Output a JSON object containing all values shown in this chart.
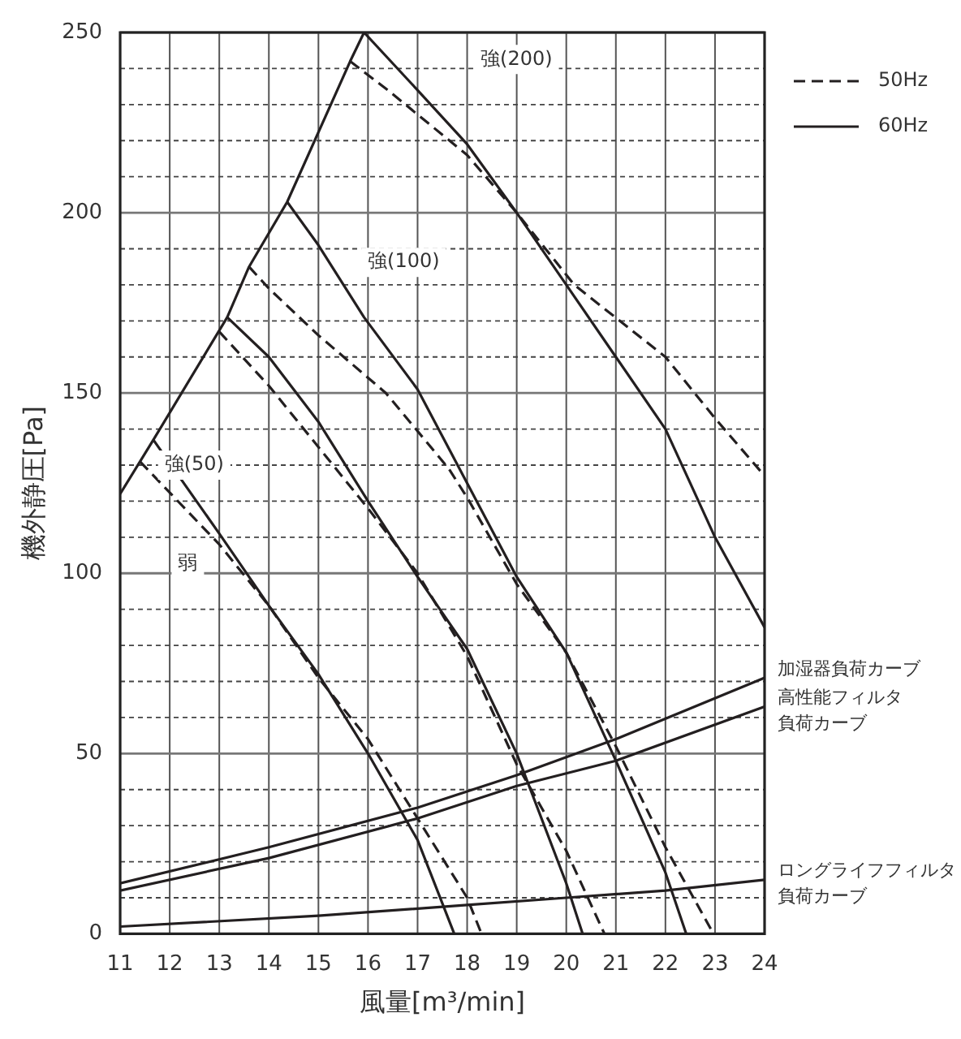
{
  "chart_data": {
    "type": "line",
    "xlabel": "風量[m³/min]",
    "ylabel": "機外静圧[Pa]",
    "xlim": [
      11,
      24
    ],
    "xticks": [
      11,
      12,
      13,
      14,
      15,
      16,
      17,
      18,
      19,
      20,
      21,
      22,
      23,
      24
    ],
    "ylim": [
      0,
      250
    ],
    "yticks": [
      0,
      {
        "value": 10,
        "label": null
      },
      {
        "value": 20,
        "label": null
      },
      {
        "value": 30,
        "label": null
      },
      {
        "value": 40,
        "label": null
      },
      50,
      {
        "value": 60,
        "label": null
      },
      {
        "value": 70,
        "label": null
      },
      {
        "value": 80,
        "label": null
      },
      {
        "value": 90,
        "label": null
      },
      100,
      {
        "value": 110,
        "label": null
      },
      {
        "value": 120,
        "label": null
      },
      {
        "value": 130,
        "label": null
      },
      {
        "value": 140,
        "label": null
      },
      150,
      {
        "value": 160,
        "label": null
      },
      {
        "value": 170,
        "label": null
      },
      {
        "value": 180,
        "label": null
      },
      {
        "value": 190,
        "label": null
      },
      200,
      {
        "value": 210,
        "label": null
      },
      {
        "value": 220,
        "label": null
      },
      {
        "value": 230,
        "label": null
      },
      {
        "value": 240,
        "label": null
      },
      250
    ],
    "grid": true,
    "legend": "top right",
    "marker": "none",
    "annotations": [
      "強(200)",
      "強(100)",
      "強(50)",
      "弱"
    ],
    "series": [
      {
        "name": "50Hz",
        "color": "#231f20",
        "line_style": "dashed",
        "x": [
          15.64,
          16.4,
          18,
          19,
          20.16,
          22,
          23,
          24
        ],
        "values": [
          242,
          234,
          216,
          200,
          180,
          160,
          143,
          127
        ]
      },
      {
        "name": "60Hz",
        "color": "#231f20",
        "line_style": "solid",
        "x": [
          15.92,
          17,
          18,
          19,
          20,
          21,
          22,
          22.5,
          23,
          24
        ],
        "values": [
          250,
          234,
          219,
          200,
          180,
          160,
          140,
          125,
          110,
          85
        ]
      },
      {
        "color": "#231f20",
        "line_style": "solid",
        "x": [
          11,
          11.67,
          13.16,
          13.6,
          14.37,
          15.64,
          15.92
        ],
        "values": [
          122,
          137,
          171,
          185,
          203,
          242,
          250
        ]
      },
      {
        "color": "#231f20",
        "line_style": "solid",
        "x": [
          14.37,
          15,
          15.92,
          17,
          18,
          19,
          20,
          21,
          22,
          22.42
        ],
        "values": [
          203,
          191,
          171,
          151,
          125,
          99,
          78,
          48,
          17,
          0
        ]
      },
      {
        "color": "#231f20",
        "line_style": "dashed",
        "x": [
          13.6,
          14,
          15,
          16.36,
          17.63,
          18,
          19,
          20,
          21,
          22,
          22.97
        ],
        "values": [
          185,
          179,
          166,
          150,
          129,
          121,
          97,
          78,
          52,
          24,
          0
        ]
      },
      {
        "color": "#231f20",
        "line_style": "solid",
        "x": [
          13.16,
          14,
          15,
          16,
          17,
          18,
          19,
          20,
          20.33
        ],
        "values": [
          171,
          160,
          142,
          120,
          99,
          79,
          50,
          14,
          0
        ]
      },
      {
        "color": "#231f20",
        "line_style": "dashed",
        "x": [
          13,
          14,
          15,
          16,
          17,
          18,
          19,
          20,
          20.77
        ],
        "values": [
          167,
          152,
          135,
          118,
          100,
          77,
          47,
          23,
          0
        ]
      },
      {
        "color": "#231f20",
        "line_style": "solid",
        "x": [
          11.67,
          13,
          14,
          15,
          16,
          17,
          17.74
        ],
        "values": [
          137,
          111,
          91,
          72,
          50,
          26,
          0
        ]
      },
      {
        "color": "#231f20",
        "line_style": "dashed",
        "x": [
          11.4,
          13,
          14,
          15,
          16,
          17,
          18,
          18.29
        ],
        "values": [
          131,
          108,
          91,
          71,
          54,
          32,
          10,
          0
        ]
      },
      {
        "name": "加湿器負荷カーブ",
        "color": "#231f20",
        "x": [
          11,
          14,
          17,
          19,
          20,
          21,
          24
        ],
        "values": [
          14,
          24,
          35,
          44,
          49,
          54,
          71
        ]
      },
      {
        "name": "高性能フィルタ負荷カーブ",
        "color": "#231f20",
        "x": [
          11,
          14,
          17,
          19,
          21,
          24
        ],
        "values": [
          12,
          21,
          32,
          41,
          48,
          63
        ]
      },
      {
        "name": "ロングライフフィルタ負荷カーブ",
        "color": "#231f20",
        "x": [
          11,
          15,
          18,
          20,
          22,
          24
        ],
        "values": [
          2,
          5,
          8,
          10,
          12,
          15
        ]
      }
    ]
  }
}
